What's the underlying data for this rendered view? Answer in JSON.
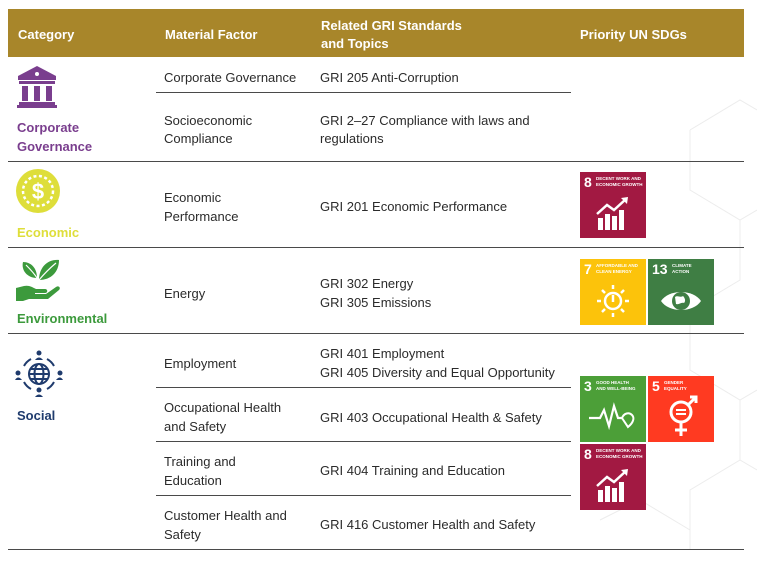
{
  "header": {
    "category": "Category",
    "material_factor": "Material Factor",
    "gri_line1": "Related GRI Standards",
    "gri_line2": "and Topics",
    "sdgs": "Priority UN SDGs"
  },
  "categories": {
    "governance": {
      "label_line1": "Corporate",
      "label_line2": "Governance",
      "color": "#7a3e8e",
      "icon": "bank-building-icon"
    },
    "economic": {
      "label": "Economic",
      "color": "#dede3a",
      "icon": "dollar-coin-icon"
    },
    "environmental": {
      "label": "Environmental",
      "color": "#3c9a3c",
      "icon": "hand-leaves-icon"
    },
    "social": {
      "label": "Social",
      "color": "#1f3b6d",
      "icon": "globe-people-icon"
    }
  },
  "rows": [
    {
      "factor": "Corporate Governance",
      "gri": "GRI 205 Anti-Corruption"
    },
    {
      "factor_l1": "Socioeconomic",
      "factor_l2": "Compliance",
      "gri_l1": "GRI 2–27 Compliance with laws and",
      "gri_l2": "regulations"
    },
    {
      "factor_l1": "Economic",
      "factor_l2": "Performance",
      "gri": "GRI 201 Economic Performance"
    },
    {
      "factor": "Energy",
      "gri_l1": "GRI 302 Energy",
      "gri_l2": "GRI 305 Emissions"
    },
    {
      "factor": "Employment",
      "gri_l1": "GRI 401 Employment",
      "gri_l2": "GRI 405 Diversity and Equal Opportunity"
    },
    {
      "factor_l1": "Occupational Health",
      "factor_l2": "and Safety",
      "gri": "GRI 403 Occupational Health & Safety"
    },
    {
      "factor_l1": "Training and",
      "factor_l2": "Education",
      "gri": "GRI 404 Training and Education"
    },
    {
      "factor_l1": "Customer Health and",
      "factor_l2": "Safety",
      "gri": "GRI 416 Customer Health and Safety"
    }
  ],
  "sdgs": {
    "sdg8": {
      "num": "8",
      "title_l1": "DECENT WORK AND",
      "title_l2": "ECONOMIC GROWTH",
      "color": "#a21942",
      "icon": "growth-chart-icon"
    },
    "sdg7": {
      "num": "7",
      "title_l1": "AFFORDABLE AND",
      "title_l2": "CLEAN ENERGY",
      "color": "#fcc30b",
      "icon": "sun-power-icon"
    },
    "sdg13": {
      "num": "13",
      "title_l1": "CLIMATE",
      "title_l2": "ACTION",
      "color": "#3f7e44",
      "icon": "eye-globe-icon"
    },
    "sdg3": {
      "num": "3",
      "title_l1": "GOOD HEALTH",
      "title_l2": "AND WELL-BEING",
      "color": "#4c9f38",
      "icon": "heartbeat-icon"
    },
    "sdg5": {
      "num": "5",
      "title_l1": "GENDER",
      "title_l2": "EQUALITY",
      "color": "#ff3a21",
      "icon": "gender-symbol-icon"
    }
  }
}
